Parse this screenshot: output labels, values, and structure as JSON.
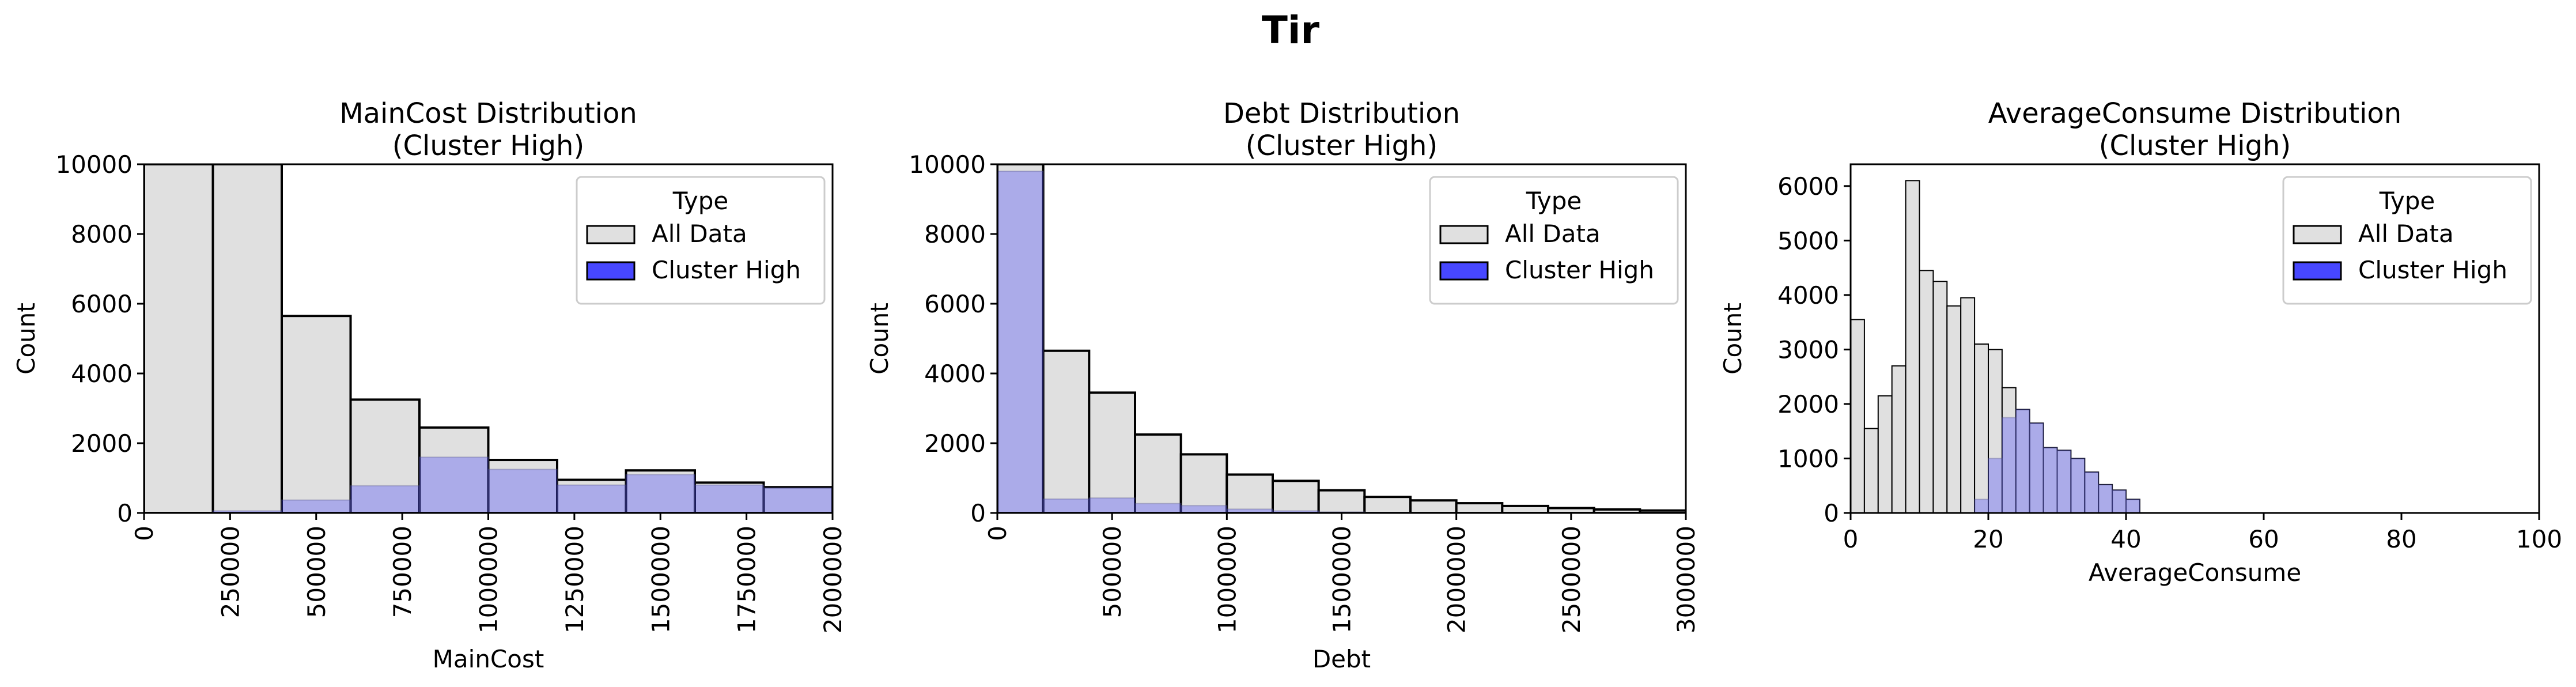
{
  "figure": {
    "suptitle": "Tir",
    "legend_title": "Type",
    "legend_labels": [
      "All Data",
      "Cluster High"
    ],
    "colors": {
      "all_data_fill": "#e0e0e0",
      "all_data_edge": "#000000",
      "cluster_fill": "#3333ff",
      "cluster_overlay": "#aaaadf"
    }
  },
  "chart_data": [
    {
      "type": "bar",
      "title": "MainCost Distribution\n(Cluster High)",
      "xlabel": "MainCost",
      "ylabel": "Count",
      "xlim": [
        0,
        2000000
      ],
      "ylim": [
        0,
        10000
      ],
      "xticks": [
        0,
        250000,
        500000,
        750000,
        1000000,
        1250000,
        1500000,
        1750000,
        2000000
      ],
      "yticks": [
        0,
        2000,
        4000,
        6000,
        8000,
        10000
      ],
      "xtick_rotation": 90,
      "legend_position": "upper right",
      "bin_edges": [
        0,
        200000,
        400000,
        600000,
        800000,
        1000000,
        1200000,
        1400000,
        1600000,
        1800000,
        2000000
      ],
      "series": [
        {
          "name": "All Data",
          "values": [
            10000,
            10000,
            5650,
            3250,
            2450,
            1520,
            950,
            1220,
            870,
            740
          ]
        },
        {
          "name": "Cluster High",
          "values": [
            0,
            60,
            370,
            780,
            1600,
            1250,
            800,
            1100,
            800,
            720
          ]
        }
      ]
    },
    {
      "type": "bar",
      "title": "Debt Distribution\n(Cluster High)",
      "xlabel": "Debt",
      "ylabel": "Count",
      "xlim": [
        0,
        3000000
      ],
      "ylim": [
        0,
        10000
      ],
      "xticks": [
        0,
        500000,
        1000000,
        1500000,
        2000000,
        2500000,
        3000000
      ],
      "yticks": [
        0,
        2000,
        4000,
        6000,
        8000,
        10000
      ],
      "xtick_rotation": 90,
      "legend_position": "upper right",
      "bin_edges": [
        0,
        200000,
        400000,
        600000,
        800000,
        1000000,
        1200000,
        1400000,
        1600000,
        1800000,
        2000000,
        2200000,
        2400000,
        2600000,
        2800000,
        3000000
      ],
      "series": [
        {
          "name": "All Data",
          "values": [
            10000,
            4650,
            3450,
            2250,
            1680,
            1100,
            920,
            650,
            460,
            360,
            280,
            200,
            140,
            100,
            70
          ]
        },
        {
          "name": "Cluster High",
          "values": [
            9800,
            400,
            430,
            270,
            210,
            110,
            60,
            30,
            15,
            10,
            5,
            3,
            2,
            1,
            0
          ]
        }
      ]
    },
    {
      "type": "bar",
      "title": "AverageConsume Distribution\n(Cluster High)",
      "xlabel": "AverageConsume",
      "ylabel": "Count",
      "xlim": [
        0,
        100
      ],
      "ylim": [
        0,
        6400
      ],
      "xticks": [
        0,
        20,
        40,
        60,
        80,
        100
      ],
      "yticks": [
        0,
        1000,
        2000,
        3000,
        4000,
        5000,
        6000
      ],
      "xtick_rotation": 0,
      "legend_position": "upper right",
      "bin_edges": [
        0,
        2,
        4,
        6,
        8,
        10,
        12,
        14,
        16,
        18,
        20,
        22,
        24,
        26,
        28,
        30,
        32,
        34,
        36,
        38,
        40,
        42
      ],
      "series": [
        {
          "name": "All Data",
          "values": [
            3550,
            1550,
            2150,
            2700,
            6100,
            4450,
            4250,
            3800,
            3950,
            3100,
            3000,
            2300,
            1900,
            1650,
            1200,
            1150,
            1000,
            750,
            520,
            420,
            250
          ]
        },
        {
          "name": "Cluster High",
          "values": [
            0,
            0,
            0,
            0,
            0,
            0,
            0,
            0,
            0,
            250,
            1000,
            1750,
            1900,
            1650,
            1200,
            1150,
            1000,
            750,
            520,
            420,
            250
          ]
        }
      ]
    }
  ]
}
